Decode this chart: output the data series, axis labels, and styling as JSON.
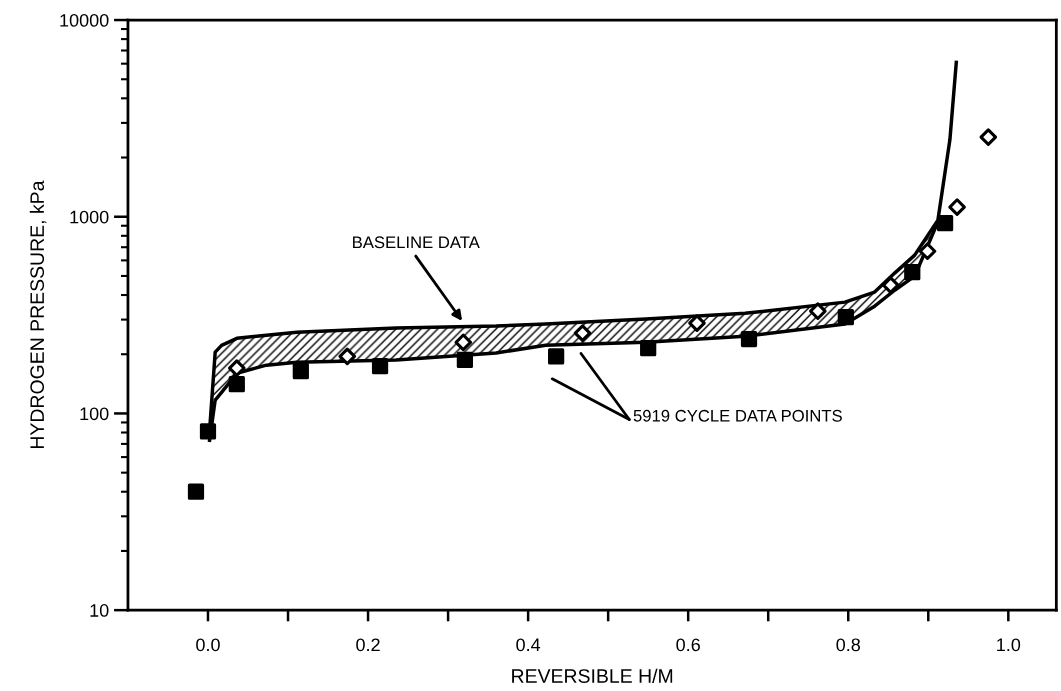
{
  "chart_data": {
    "type": "scatter",
    "xlabel": "REVERSIBLE H/M",
    "ylabel": "HYDROGEN PRESSURE, kPa",
    "log": "y",
    "grid": false,
    "xlim": [
      -0.1,
      1.06
    ],
    "xticks": [
      {
        "value": 0.0,
        "label": "0.0"
      },
      {
        "value": 0.1,
        "label": null
      },
      {
        "value": 0.2,
        "label": "0.2"
      },
      {
        "value": 0.3,
        "label": null
      },
      {
        "value": 0.4,
        "label": "0.4"
      },
      {
        "value": 0.5,
        "label": null
      },
      {
        "value": 0.6,
        "label": "0.6"
      },
      {
        "value": 0.7,
        "label": null
      },
      {
        "value": 0.8,
        "label": "0.8"
      },
      {
        "value": 0.9,
        "label": null
      },
      {
        "value": 1.0,
        "label": "1.0"
      }
    ],
    "ylim": [
      10,
      10000
    ],
    "yticks": [
      10,
      100,
      1000,
      10000
    ],
    "series": [
      {
        "type": "line",
        "color": "#000000",
        "marker": "none",
        "line_style": "solid",
        "x": [
          0.002,
          0.009,
          0.017,
          0.036,
          0.073,
          0.111,
          0.235,
          0.36,
          0.422,
          0.547,
          0.671,
          0.796,
          0.833,
          0.858,
          0.883,
          0.912
        ],
        "values": [
          73,
          117,
          128,
          160,
          176,
          182,
          187,
          203,
          222,
          230,
          247,
          285,
          351,
          423,
          499,
          940
        ]
      },
      {
        "type": "line",
        "color": "#000000",
        "marker": "none",
        "line_style": "solid",
        "x": [
          0.002,
          0.009,
          0.017,
          0.036,
          0.073,
          0.111,
          0.235,
          0.36,
          0.422,
          0.547,
          0.671,
          0.796,
          0.833,
          0.858,
          0.883,
          0.912,
          0.927,
          0.935
        ],
        "values": [
          82,
          205,
          222,
          241,
          250,
          259,
          272,
          278,
          285,
          302,
          323,
          368,
          414,
          517,
          638,
          961,
          2460,
          6100
        ]
      },
      {
        "type": "scatter",
        "color": "#000000",
        "marker": "square",
        "x": [
          -0.015,
          0.0,
          0.036,
          0.116,
          0.215,
          0.321,
          0.435,
          0.55,
          0.676,
          0.797,
          0.88,
          0.921
        ],
        "values": [
          40,
          81,
          141,
          164,
          174,
          187,
          195,
          215,
          239,
          309,
          523,
          927
        ]
      },
      {
        "type": "scatter",
        "color": "#ffffff",
        "marker": "diamond",
        "x": [
          0.036,
          0.174,
          0.319,
          0.468,
          0.611,
          0.762,
          0.853,
          0.899,
          0.936,
          0.975
        ],
        "values": [
          170,
          195,
          230,
          256,
          288,
          331,
          449,
          668,
          1120,
          2540
        ]
      }
    ],
    "annotations": [
      "BASELINE DATA",
      "5919 CYCLE DATA POINTS"
    ]
  }
}
